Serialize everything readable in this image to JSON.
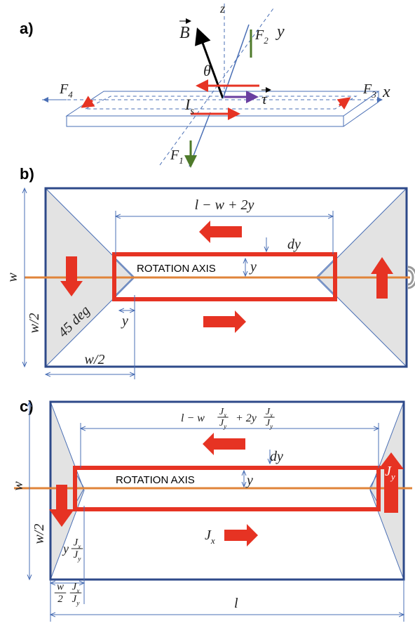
{
  "panel_a": {
    "label": "a)",
    "b_vec": "B",
    "z": "z",
    "y": "y",
    "x": "x",
    "theta": "θ",
    "tau": "τ",
    "f1": {
      "base": "F",
      "sub": "1"
    },
    "f2": {
      "base": "F",
      "sub": "2"
    },
    "f3": {
      "base": "F",
      "sub": "3"
    },
    "f4": {
      "base": "F",
      "sub": "4"
    },
    "current": {
      "base": "I",
      "sub": "s"
    }
  },
  "panel_b": {
    "label": "b)",
    "length": "l − w + 2y",
    "dy": "dy",
    "axis": "ROTATION AXIS",
    "y_inner": "y",
    "w": "w",
    "half_w_side": "w/2",
    "angle": "45 deg",
    "y_offset": "y",
    "half_w_bottom": "w/2"
  },
  "panel_c": {
    "label": "c)",
    "length": {
      "pre": "l − w",
      "frac1": {
        "num": {
          "base": "J",
          "sub": "x"
        },
        "den": {
          "base": "J",
          "sub": "y"
        }
      },
      "mid": "+ 2y",
      "frac2": {
        "num": {
          "base": "J",
          "sub": "x"
        },
        "den": {
          "base": "J",
          "sub": "y"
        }
      }
    },
    "dy": "dy",
    "axis": "ROTATION AXIS",
    "y_inner": "y",
    "w": "w",
    "half_w_side": "w/2",
    "jy": {
      "base": "J",
      "sub": "y"
    },
    "jx": {
      "base": "J",
      "sub": "x"
    },
    "y_offset": {
      "pre": "y",
      "frac": {
        "num": {
          "base": "J",
          "sub": "x"
        },
        "den": {
          "base": "J",
          "sub": "y"
        }
      }
    },
    "half_w_bottom": {
      "frac0": {
        "num": "w",
        "den": "2"
      },
      "frac": {
        "num": {
          "base": "J",
          "sub": "x"
        },
        "den": {
          "base": "J",
          "sub": "y"
        }
      }
    },
    "l": "l"
  }
}
